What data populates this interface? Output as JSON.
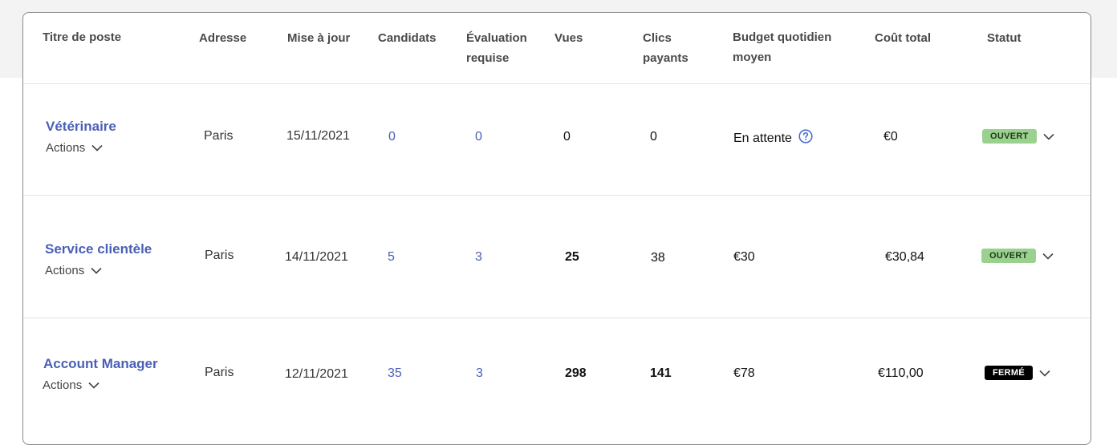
{
  "columns": {
    "title": "Titre de poste",
    "address": "Adresse",
    "updated": "Mise à jour",
    "candidates": "Candidats",
    "evaluation_l1": "Évaluation",
    "evaluation_l2": "requise",
    "views": "Vues",
    "paid_clicks_l1": "Clics",
    "paid_clicks_l2": "payants",
    "budget_l1": "Budget quotidien",
    "budget_l2": "moyen",
    "total_cost": "Coût total",
    "status": "Statut"
  },
  "rows": [
    {
      "title": "Vétérinaire",
      "actions": "Actions",
      "address": "Paris",
      "updated": "15/11/2021",
      "candidates": "0",
      "evaluation": "0",
      "views": "0",
      "paid_clicks": "0",
      "budget": "En attente",
      "total_cost": "€0",
      "status": "OUVERT"
    },
    {
      "title": "Service clientèle",
      "actions": "Actions",
      "address": "Paris",
      "updated": "14/11/2021",
      "candidates": "5",
      "evaluation": "3",
      "views": "25",
      "paid_clicks": "38",
      "budget": "€30",
      "total_cost": "€30,84",
      "status": "OUVERT"
    },
    {
      "title": "Account Manager",
      "actions": "Actions",
      "address": "Paris",
      "updated": "12/11/2021",
      "candidates": "35",
      "evaluation": "3",
      "views": "298",
      "paid_clicks": "141",
      "budget": "€78",
      "total_cost": "€110,00",
      "status": "FERMÉ"
    }
  ],
  "colors": {
    "link": "#4a5fb6",
    "badge_open": "#9bd18f",
    "badge_closed": "#000000"
  }
}
